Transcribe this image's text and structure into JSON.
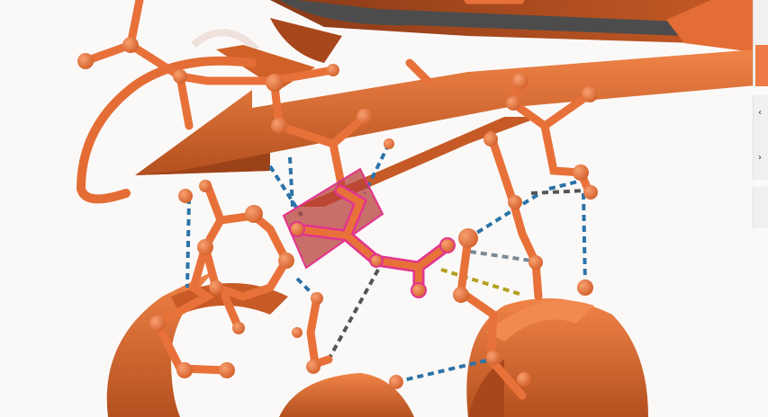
{
  "scene": {
    "background": "#fbf9f8",
    "colors": {
      "ribbon": "#e46d35",
      "ribbon_dark": "#7a3316",
      "ribbon_gray": "#4d4c4c",
      "stick": "#e8713a",
      "ligand_highlight": "#e2348f",
      "hbond_blue": "#2b73a8",
      "hbond_gray": "#555555",
      "contact_yellow": "#b3a020"
    },
    "icons": [
      "panel-toggle-icon",
      "panel-options-icon"
    ],
    "side_panel": {
      "glyph_b1": "‹",
      "glyph_b2": "›"
    }
  }
}
